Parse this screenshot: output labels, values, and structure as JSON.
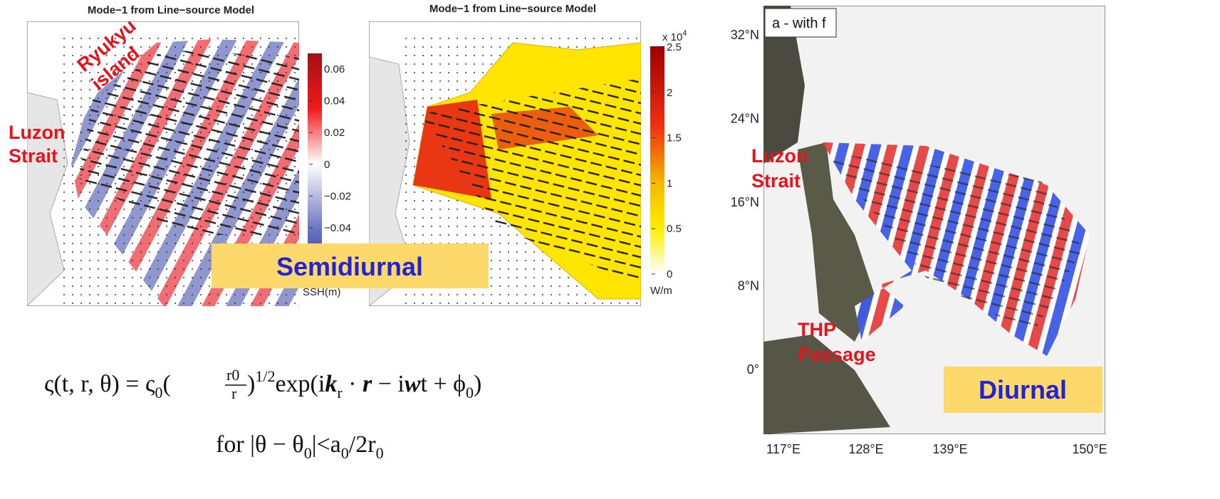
{
  "panels": [
    {
      "title": "Mode−1 from Line−source Model",
      "colorbar": {
        "ticks": [
          "0.06",
          "0.04",
          "0.02",
          "0",
          "−0.02",
          "−0.04"
        ],
        "unit": "SSH(m)"
      },
      "labels": [
        "Ryukyu",
        "island",
        "Luzon",
        "Strait"
      ]
    },
    {
      "title": "Mode−1 from Line−source Model",
      "colorbar": {
        "scale": "x 10",
        "scale_exp": "4",
        "ticks": [
          "2.5",
          "2",
          "1.5",
          "1",
          "0.5",
          "0"
        ],
        "unit": "W/m"
      }
    },
    {
      "title": "a - with f",
      "lat_labels": [
        "32°N",
        "24°N",
        "16°N",
        "8°N",
        "0°"
      ],
      "lon_labels": [
        "117°E",
        "128°E",
        "139°E",
        "150°E"
      ],
      "labels": [
        "Luzon",
        "Strait",
        "THP",
        "Passage"
      ],
      "banner": "Diurnal"
    }
  ],
  "banner": "Semidiurnal",
  "formula": {
    "line1": [
      "ς(t, r, θ) = ς",
      "0",
      "(",
      "r0",
      "r",
      ")",
      "1/2",
      "exp(i",
      "k",
      "r",
      " · ",
      "r",
      " − i",
      "w",
      "t + ϕ",
      "0",
      ")"
    ],
    "line2": [
      "for  |θ − θ",
      "0",
      "|<a",
      "0",
      "/2r",
      "0"
    ]
  }
}
